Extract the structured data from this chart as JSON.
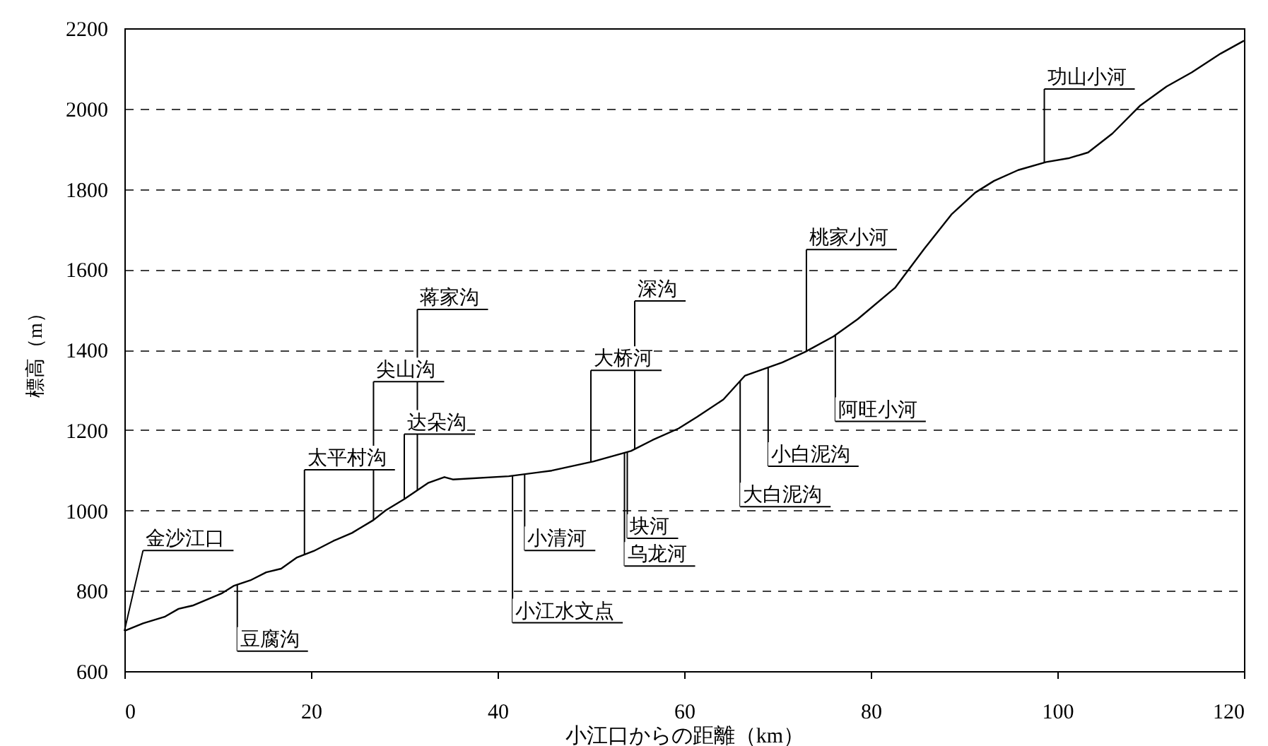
{
  "chart_data": {
    "type": "line",
    "xlabel": "小江口からの距離（km）",
    "ylabel": "標高（m）",
    "color": "#000000",
    "x": [
      0,
      2,
      4.3,
      5.8,
      7.3,
      10.4,
      11.7,
      13.5,
      15.2,
      16.8,
      18.5,
      20.3,
      22.4,
      24.4,
      26.7,
      28,
      30,
      32.6,
      34.3,
      35.2,
      41.2,
      45.8,
      50.3,
      54.3,
      56.6,
      59.4,
      61.4,
      64.2,
      66.5,
      70.5,
      73,
      76,
      78.6,
      82.6,
      85.7,
      88.7,
      91.2,
      93.2,
      95.8,
      98.8,
      101.3,
      103.3,
      105.9,
      108.9,
      111.7,
      114.4,
      117.5,
      120
    ],
    "values": [
      700,
      719,
      735,
      755,
      763,
      793,
      812,
      826,
      846,
      855,
      883,
      899,
      924,
      944,
      976,
      1000,
      1028,
      1069,
      1083,
      1077,
      1085,
      1099,
      1122,
      1148,
      1175,
      1204,
      1233,
      1276,
      1335,
      1368,
      1395,
      1433,
      1476,
      1554,
      1650,
      1738,
      1791,
      1820,
      1847,
      1867,
      1877,
      1891,
      1938,
      2008,
      2055,
      2090,
      2137,
      2169
    ],
    "line_style": "solid",
    "xlim": [
      0,
      120
    ],
    "xticks": [
      0,
      20,
      40,
      60,
      80,
      100,
      120
    ],
    "ylim": [
      600,
      2200
    ],
    "yticks": [
      600,
      800,
      1000,
      1200,
      1400,
      1600,
      1800,
      2000,
      2200
    ],
    "grid": "y",
    "annotations": [
      {
        "text": "金沙江口",
        "x": 0,
        "y": 700
      },
      {
        "text": "豆腐沟",
        "x": 12.1,
        "y": 815
      },
      {
        "text": "太平村沟",
        "x": 19.3,
        "y": 890
      },
      {
        "text": "尖山沟",
        "x": 26.7,
        "y": 976
      },
      {
        "text": "达朵沟",
        "x": 30,
        "y": 1028
      },
      {
        "text": "蒋家沟",
        "x": 31.4,
        "y": 1050
      },
      {
        "text": "小清河",
        "x": 42.9,
        "y": 1090
      },
      {
        "text": "小江水文点",
        "x": 41.6,
        "y": 1086
      },
      {
        "text": "深沟",
        "x": 54.7,
        "y": 1152
      },
      {
        "text": "大桥河",
        "x": 50,
        "y": 1120
      },
      {
        "text": "块河",
        "x": 53.9,
        "y": 1145
      },
      {
        "text": "乌龙河",
        "x": 53.6,
        "y": 1143
      },
      {
        "text": "大白泥沟",
        "x": 66,
        "y": 1322
      },
      {
        "text": "小白泥沟",
        "x": 69,
        "y": 1356
      },
      {
        "text": "阿旺小河",
        "x": 76.2,
        "y": 1436
      },
      {
        "text": "桃家小河",
        "x": 73.1,
        "y": 1396
      },
      {
        "text": "功山小河",
        "x": 98.6,
        "y": 1866
      }
    ]
  }
}
